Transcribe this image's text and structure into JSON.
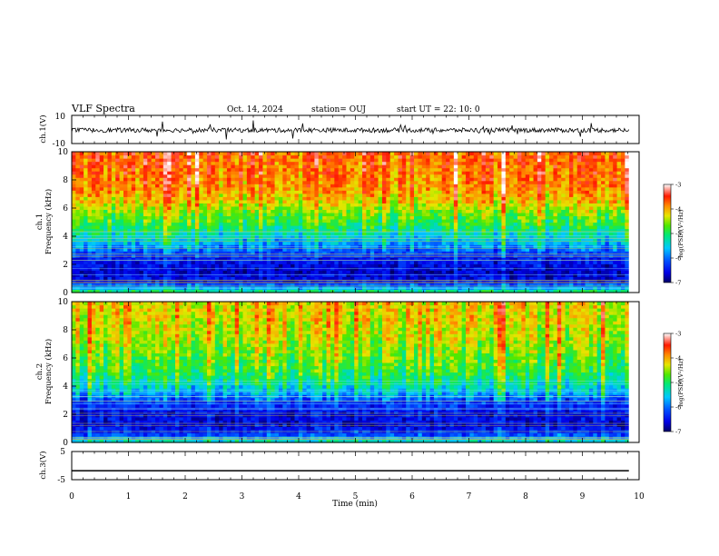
{
  "header": {
    "title": "VLF Spectra",
    "date": "Oct. 14, 2024",
    "station": "station= OUJ",
    "start": "start UT =   22: 10: 0"
  },
  "chart_data": [
    {
      "type": "line",
      "id": "ch1_wave",
      "ylabel": "ch.1(V)",
      "ylim": [
        -10,
        10
      ],
      "yticks": [
        "10",
        "-10"
      ],
      "xlim": [
        0,
        10
      ],
      "trace_baseline": -0.5,
      "trace_noise_amplitude": 1.6,
      "color": "#000000"
    },
    {
      "type": "heatmap",
      "id": "ch1_spec",
      "ylabel_top": "ch.1",
      "ylabel": "Frequency (kHz)",
      "ylim": [
        0,
        10
      ],
      "yticks": [
        "0",
        "2",
        "4",
        "6",
        "8",
        "10"
      ],
      "xlim": [
        0,
        9.82
      ],
      "colorbar": {
        "label": "log(PSD)(V²/Hz)",
        "range": [
          -7,
          -3
        ],
        "ticks": [
          "-3",
          "-4",
          "-5",
          "-6",
          "-7"
        ]
      },
      "profile_log_psd": [
        {
          "f": 0.0,
          "v": -4.9
        },
        {
          "f": 0.3,
          "v": -5.6
        },
        {
          "f": 0.8,
          "v": -6.5
        },
        {
          "f": 1.5,
          "v": -6.7
        },
        {
          "f": 2.5,
          "v": -6.4
        },
        {
          "f": 3.5,
          "v": -5.7
        },
        {
          "f": 4.5,
          "v": -5.1
        },
        {
          "f": 5.5,
          "v": -4.7
        },
        {
          "f": 6.5,
          "v": -4.2
        },
        {
          "f": 7.5,
          "v": -3.9
        },
        {
          "f": 8.5,
          "v": -3.8
        },
        {
          "f": 10.0,
          "v": -3.7
        }
      ]
    },
    {
      "type": "heatmap",
      "id": "ch2_spec",
      "ylabel_top": "ch.2",
      "ylabel": "Frequency (kHz)",
      "ylim": [
        0,
        10
      ],
      "yticks": [
        "0",
        "2",
        "4",
        "6",
        "8",
        "10"
      ],
      "xlim": [
        0,
        9.82
      ],
      "colorbar": {
        "label": "log(PSD)(V²/Hz)",
        "range": [
          -7,
          -3
        ],
        "ticks": [
          "-3",
          "-4",
          "-5",
          "-6",
          "-7"
        ]
      },
      "profile_log_psd": [
        {
          "f": 0.0,
          "v": -5.2
        },
        {
          "f": 0.5,
          "v": -6.1
        },
        {
          "f": 1.2,
          "v": -6.6
        },
        {
          "f": 2.2,
          "v": -6.5
        },
        {
          "f": 3.0,
          "v": -6.2
        },
        {
          "f": 3.6,
          "v": -5.6
        },
        {
          "f": 4.5,
          "v": -5.1
        },
        {
          "f": 5.5,
          "v": -4.8
        },
        {
          "f": 6.5,
          "v": -4.6
        },
        {
          "f": 7.5,
          "v": -4.4
        },
        {
          "f": 8.5,
          "v": -4.3
        },
        {
          "f": 10.0,
          "v": -4.2
        }
      ]
    },
    {
      "type": "line",
      "id": "ch3_wave",
      "ylabel": "ch.3(V)",
      "ylim": [
        -5,
        5
      ],
      "yticks": [
        "5",
        "-5"
      ],
      "xlim": [
        0,
        9.82
      ],
      "constant_value": -1.8,
      "color": "#000000"
    }
  ],
  "xaxis": {
    "label": "Time (min)",
    "range": [
      0,
      10
    ],
    "ticks": [
      "0",
      "1",
      "2",
      "3",
      "4",
      "5",
      "6",
      "7",
      "8",
      "9",
      "10"
    ]
  }
}
